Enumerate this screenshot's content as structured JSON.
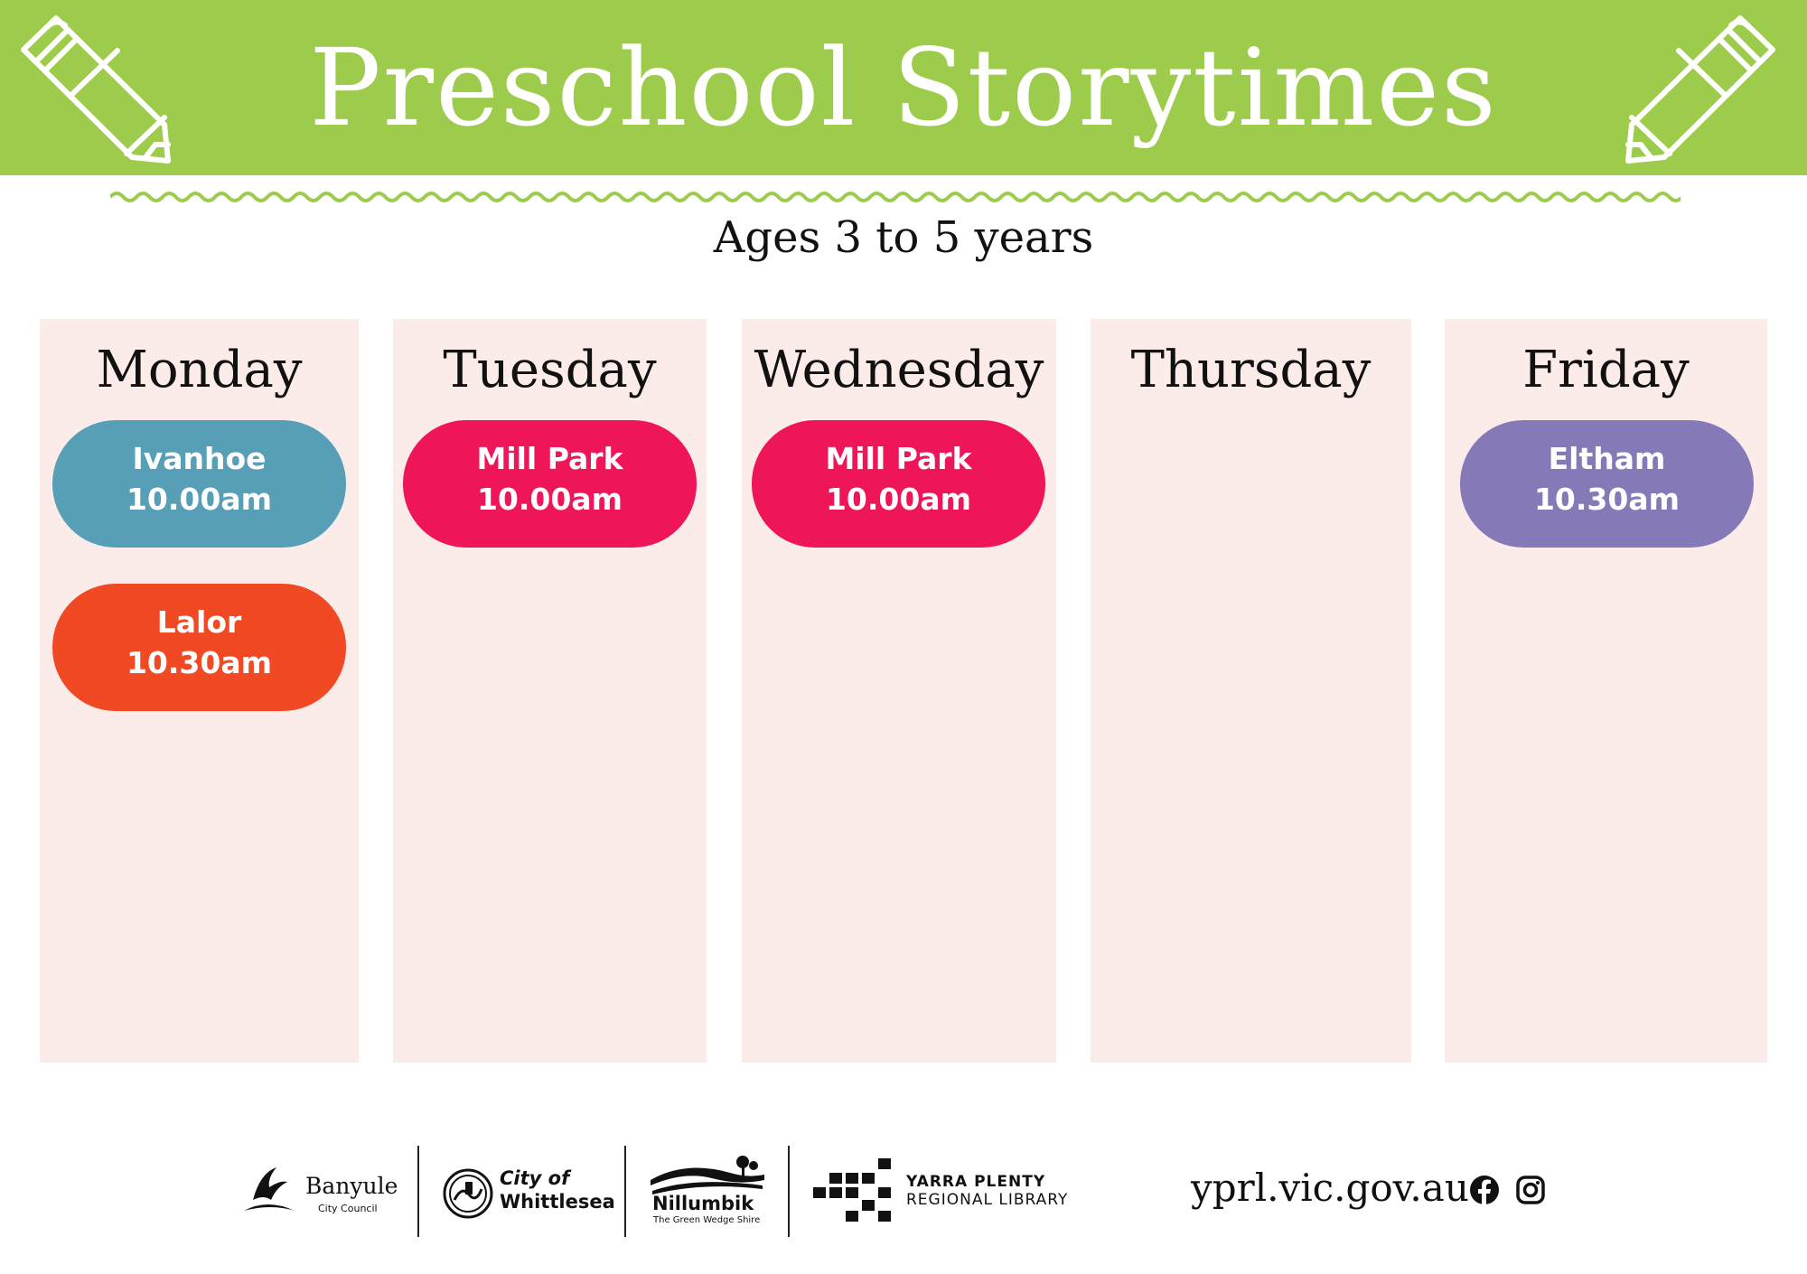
{
  "header": {
    "title": "Preschool Storytimes",
    "subtitle": "Ages 3 to 5 years",
    "banner_color": "#9dcb4b",
    "icons": [
      "pencil-icon",
      "pencil-icon"
    ]
  },
  "days": [
    {
      "name": "Monday",
      "sessions": [
        {
          "location": "Ivanhoe",
          "time": "10.00am",
          "color": "#579eb7"
        },
        {
          "location": "Lalor",
          "time": "10.30am",
          "color": "#f04924"
        }
      ]
    },
    {
      "name": "Tuesday",
      "sessions": [
        {
          "location": "Mill Park",
          "time": "10.00am",
          "color": "#ee1558"
        }
      ]
    },
    {
      "name": "Wednesday",
      "sessions": [
        {
          "location": "Mill Park",
          "time": "10.00am",
          "color": "#ee1558"
        }
      ]
    },
    {
      "name": "Thursday",
      "sessions": []
    },
    {
      "name": "Friday",
      "sessions": [
        {
          "location": "Eltham",
          "time": "10.30am",
          "color": "#8579b7"
        }
      ]
    }
  ],
  "footer": {
    "logos": {
      "banyule": {
        "name": "Banyule",
        "sub": "City Council"
      },
      "whittlesea": {
        "line1": "City of",
        "line2": "Whittlesea"
      },
      "nillumbik": {
        "name": "Nillumbik",
        "sub": "The Green Wedge Shire"
      },
      "yprl": {
        "line1": "YARRA PLENTY",
        "line2": "REGIONAL LIBRARY"
      }
    },
    "url": "yprl.vic.gov.au",
    "social_icons": [
      "facebook-icon",
      "instagram-icon"
    ]
  }
}
